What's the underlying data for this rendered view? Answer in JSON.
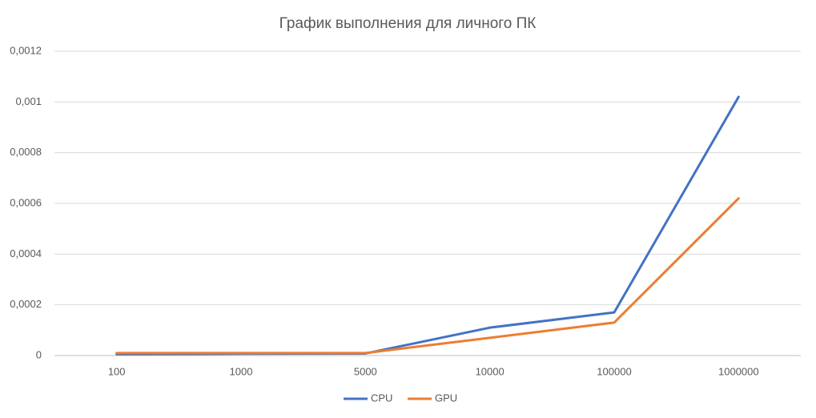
{
  "chart_data": {
    "type": "line",
    "title": "График выполнения для личного ПК",
    "categories": [
      "100",
      "1000",
      "5000",
      "10000",
      "100000",
      "1000000"
    ],
    "series": [
      {
        "name": "CPU",
        "color": "#4472c4",
        "values": [
          5e-06,
          7e-06,
          8e-06,
          0.00011,
          0.00017,
          0.00102
        ]
      },
      {
        "name": "GPU",
        "color": "#ed7d31",
        "values": [
          1e-05,
          1e-05,
          1e-05,
          7e-05,
          0.00013,
          0.00062
        ]
      }
    ],
    "ylim": [
      0,
      0.0012
    ],
    "yticks": [
      0,
      {
        "value": 0.0002,
        "label": "0,0002"
      },
      {
        "value": 0.0004,
        "label": "0,0004"
      },
      {
        "value": 0.0006,
        "label": "0,0006"
      },
      {
        "value": 0.0008,
        "label": "0,0008"
      },
      {
        "value": 0.001,
        "label": "0,001"
      },
      {
        "value": 0.0012,
        "label": "0,0012"
      }
    ],
    "grid": true,
    "legend": "bottom"
  }
}
